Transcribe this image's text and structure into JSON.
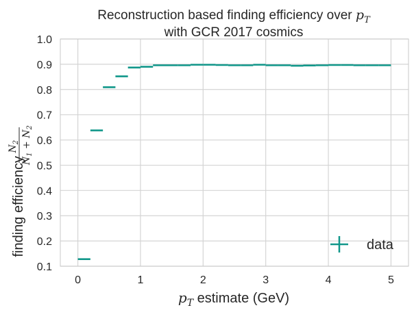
{
  "chart_data": {
    "type": "scatter",
    "title_line1_prefix": "Reconstruction based finding efficiency over ",
    "title_line1_var": "p",
    "title_line1_sub": "T",
    "title_line2": "with GCR 2017 cosmics",
    "xlabel_var": "p",
    "xlabel_sub": "T",
    "xlabel_rest": " estimate (GeV)",
    "ylabel_text": "finding efficiency ",
    "ylabel_fraction": {
      "numerator": "N",
      "numerator_sub": "2",
      "denominator": "N",
      "denominator_sub1": "1",
      "plus": " + ",
      "denominator_sub2": "2"
    },
    "xlim": [
      -0.28,
      5.28
    ],
    "ylim": [
      0.1,
      1.0
    ],
    "x_ticks": [
      0,
      1,
      2,
      3,
      4,
      5
    ],
    "x_tick_labels": [
      "0",
      "1",
      "2",
      "3",
      "4",
      "5"
    ],
    "y_ticks": [
      0.1,
      0.2,
      0.3,
      0.4,
      0.5,
      0.6,
      0.7,
      0.8,
      0.9,
      1.0
    ],
    "y_tick_labels": [
      "0.1",
      "0.2",
      "0.3",
      "0.4",
      "0.5",
      "0.6",
      "0.7",
      "0.8",
      "0.9",
      "1.0"
    ],
    "grid": true,
    "legend_position": "lower-right",
    "series": [
      {
        "name": "data",
        "color": "#11978a",
        "bin_half_width": 0.1,
        "x": [
          0.1,
          0.3,
          0.5,
          0.7,
          0.9,
          1.1,
          1.3,
          1.5,
          1.7,
          1.9,
          2.1,
          2.3,
          2.5,
          2.7,
          2.9,
          3.1,
          3.3,
          3.5,
          3.7,
          3.9,
          4.1,
          4.3,
          4.5,
          4.7,
          4.9
        ],
        "y": [
          0.128,
          0.638,
          0.809,
          0.852,
          0.887,
          0.89,
          0.896,
          0.896,
          0.896,
          0.898,
          0.898,
          0.897,
          0.896,
          0.896,
          0.898,
          0.896,
          0.896,
          0.894,
          0.895,
          0.896,
          0.897,
          0.897,
          0.896,
          0.896,
          0.896
        ],
        "y_err": [
          0.002,
          0.002,
          0.002,
          0.002,
          0.002,
          0.002,
          0.002,
          0.002,
          0.002,
          0.002,
          0.002,
          0.002,
          0.002,
          0.002,
          0.002,
          0.002,
          0.002,
          0.002,
          0.002,
          0.002,
          0.002,
          0.002,
          0.002,
          0.002,
          0.002
        ]
      }
    ]
  }
}
